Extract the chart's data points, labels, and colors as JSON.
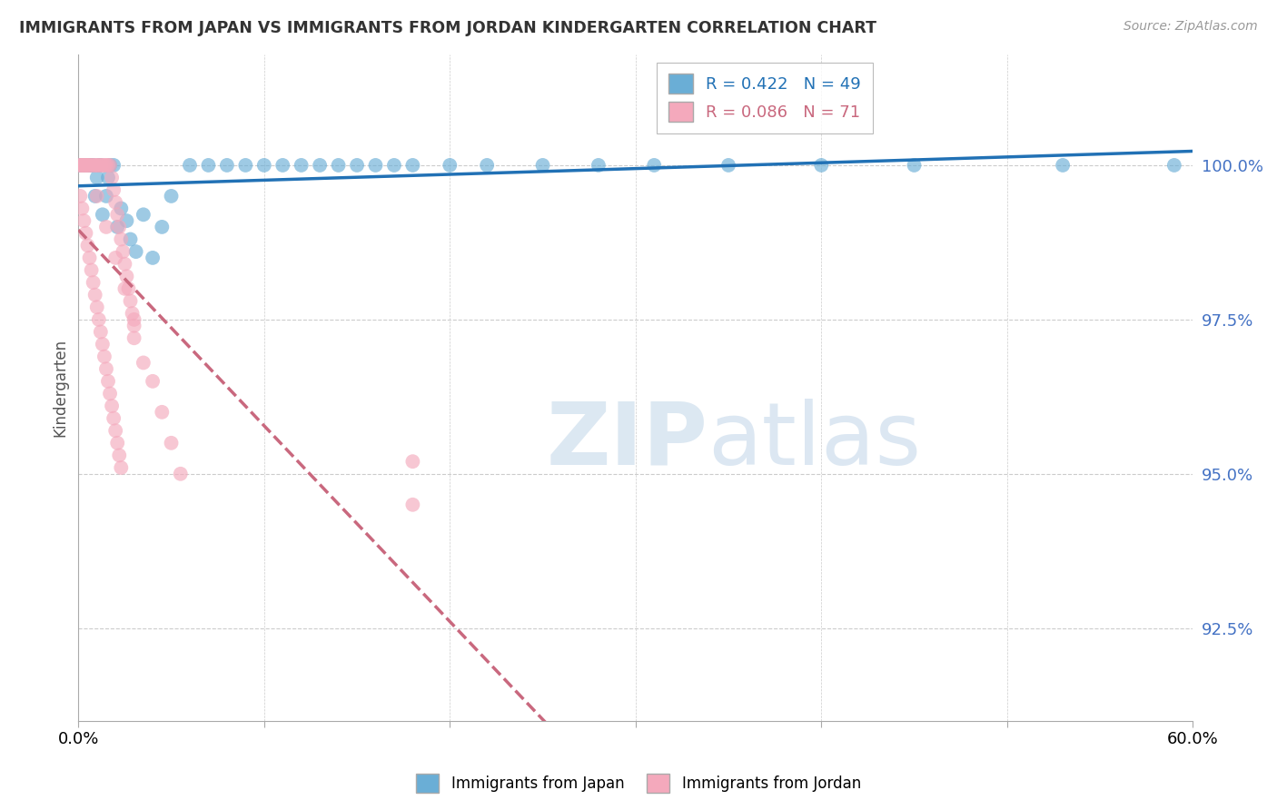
{
  "title": "IMMIGRANTS FROM JAPAN VS IMMIGRANTS FROM JORDAN KINDERGARTEN CORRELATION CHART",
  "source": "Source: ZipAtlas.com",
  "ylabel": "Kindergarten",
  "yticks": [
    92.5,
    95.0,
    97.5,
    100.0
  ],
  "ytick_labels": [
    "92.5%",
    "95.0%",
    "97.5%",
    "100.0%"
  ],
  "xlim": [
    0.0,
    0.6
  ],
  "ylim": [
    91.0,
    101.8
  ],
  "japan_R": 0.422,
  "japan_N": 49,
  "jordan_R": 0.086,
  "jordan_N": 71,
  "japan_color": "#6aaed6",
  "jordan_color": "#f4a9bc",
  "japan_line_color": "#2171b5",
  "jordan_line_color": "#c9687e",
  "japan_x": [
    0.001,
    0.002,
    0.003,
    0.004,
    0.005,
    0.006,
    0.007,
    0.008,
    0.009,
    0.01,
    0.011,
    0.012,
    0.013,
    0.015,
    0.016,
    0.017,
    0.019,
    0.021,
    0.023,
    0.026,
    0.028,
    0.031,
    0.035,
    0.04,
    0.045,
    0.05,
    0.06,
    0.07,
    0.08,
    0.09,
    0.1,
    0.11,
    0.12,
    0.13,
    0.14,
    0.15,
    0.16,
    0.17,
    0.18,
    0.2,
    0.22,
    0.25,
    0.28,
    0.31,
    0.35,
    0.4,
    0.45,
    0.53,
    0.59
  ],
  "japan_y": [
    100.0,
    100.0,
    100.0,
    100.0,
    100.0,
    100.0,
    100.0,
    100.0,
    99.5,
    99.8,
    100.0,
    100.0,
    99.2,
    99.5,
    99.8,
    100.0,
    100.0,
    99.0,
    99.3,
    99.1,
    98.8,
    98.6,
    99.2,
    98.5,
    99.0,
    99.5,
    100.0,
    100.0,
    100.0,
    100.0,
    100.0,
    100.0,
    100.0,
    100.0,
    100.0,
    100.0,
    100.0,
    100.0,
    100.0,
    100.0,
    100.0,
    100.0,
    100.0,
    100.0,
    100.0,
    100.0,
    100.0,
    100.0,
    100.0
  ],
  "jordan_x": [
    0.001,
    0.002,
    0.003,
    0.004,
    0.005,
    0.006,
    0.007,
    0.008,
    0.009,
    0.01,
    0.011,
    0.012,
    0.013,
    0.014,
    0.015,
    0.016,
    0.017,
    0.018,
    0.019,
    0.02,
    0.021,
    0.022,
    0.023,
    0.024,
    0.025,
    0.026,
    0.027,
    0.028,
    0.029,
    0.03,
    0.001,
    0.002,
    0.003,
    0.004,
    0.005,
    0.006,
    0.007,
    0.008,
    0.009,
    0.01,
    0.011,
    0.012,
    0.013,
    0.014,
    0.015,
    0.016,
    0.017,
    0.018,
    0.019,
    0.02,
    0.021,
    0.022,
    0.023,
    0.03,
    0.035,
    0.04,
    0.045,
    0.05,
    0.055,
    0.001,
    0.002,
    0.003,
    0.004,
    0.005,
    0.01,
    0.015,
    0.02,
    0.025,
    0.03,
    0.18,
    0.18
  ],
  "jordan_y": [
    100.0,
    100.0,
    100.0,
    100.0,
    100.0,
    100.0,
    100.0,
    100.0,
    100.0,
    100.0,
    100.0,
    100.0,
    100.0,
    100.0,
    100.0,
    100.0,
    100.0,
    99.8,
    99.6,
    99.4,
    99.2,
    99.0,
    98.8,
    98.6,
    98.4,
    98.2,
    98.0,
    97.8,
    97.6,
    97.4,
    99.5,
    99.3,
    99.1,
    98.9,
    98.7,
    98.5,
    98.3,
    98.1,
    97.9,
    97.7,
    97.5,
    97.3,
    97.1,
    96.9,
    96.7,
    96.5,
    96.3,
    96.1,
    95.9,
    95.7,
    95.5,
    95.3,
    95.1,
    97.2,
    96.8,
    96.5,
    96.0,
    95.5,
    95.0,
    100.0,
    100.0,
    100.0,
    100.0,
    100.0,
    99.5,
    99.0,
    98.5,
    98.0,
    97.5,
    95.2,
    94.5
  ]
}
